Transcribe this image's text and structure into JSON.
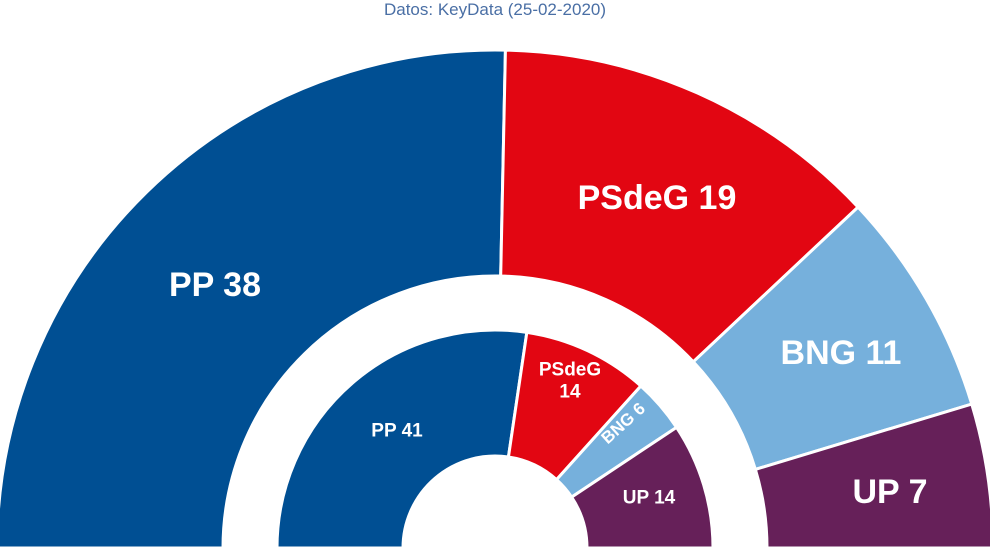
{
  "subtitle": "Datos: KeyData (25-02-2020)",
  "colors": {
    "PP": "#004f93",
    "PSdeG": "#e20612",
    "BNG": "#76b0dc",
    "UP": "#662059"
  },
  "chart_data": [
    {
      "type": "pie",
      "ring": "outer",
      "categories": [
        "PP",
        "PSdeG",
        "BNG",
        "UP"
      ],
      "values": [
        38,
        19,
        11,
        7
      ],
      "labels": [
        "PP 38",
        "PSdeG 19",
        "BNG 11",
        "UP 7"
      ]
    },
    {
      "type": "pie",
      "ring": "inner",
      "categories": [
        "PP",
        "PSdeG",
        "BNG",
        "UP"
      ],
      "values": [
        41,
        14,
        6,
        14
      ],
      "labels": [
        "PP 41",
        "PSdeG\n14",
        "BNG 6",
        "UP 14"
      ]
    }
  ]
}
